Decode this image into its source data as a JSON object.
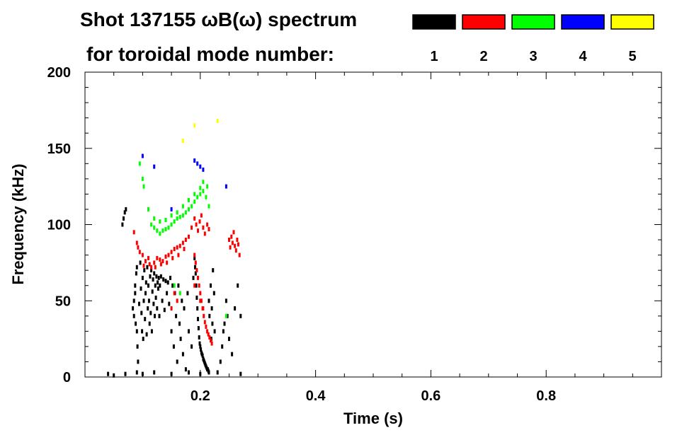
{
  "title_line1": "Shot 137155 ωB(ω) spectrum",
  "title_line2": "for toroidal mode number:",
  "chart_data": {
    "type": "scatter",
    "title": "Shot 137155 ωB(ω) spectrum for toroidal mode number:",
    "xlabel": "Time (s)",
    "ylabel": "Frequency (kHz)",
    "xlim": [
      0.0,
      1.0
    ],
    "ylim": [
      0,
      200
    ],
    "xticks": [
      0.2,
      0.4,
      0.6,
      0.8
    ],
    "xtick_labels": [
      "0.2",
      "0.4",
      "0.6",
      "0.8"
    ],
    "yticks": [
      0,
      50,
      100,
      150,
      200
    ],
    "ytick_labels": [
      "0",
      "50",
      "100",
      "150",
      "200"
    ],
    "grid": false,
    "legend_position": "top-right",
    "legend": [
      {
        "label": "1",
        "color": "#000000"
      },
      {
        "label": "2",
        "color": "#ff0000"
      },
      {
        "label": "3",
        "color": "#00ff00"
      },
      {
        "label": "4",
        "color": "#0000ff"
      },
      {
        "label": "5",
        "color": "#ffff00"
      }
    ],
    "series": [
      {
        "name": "1",
        "color": "#000000",
        "points": [
          [
            0.04,
            2
          ],
          [
            0.05,
            1
          ],
          [
            0.07,
            2
          ],
          [
            0.09,
            3
          ],
          [
            0.1,
            2
          ],
          [
            0.12,
            3
          ],
          [
            0.15,
            2
          ],
          [
            0.18,
            3
          ],
          [
            0.2,
            2
          ],
          [
            0.23,
            3
          ],
          [
            0.27,
            2
          ],
          [
            0.065,
            100
          ],
          [
            0.067,
            104
          ],
          [
            0.069,
            108
          ],
          [
            0.071,
            110
          ],
          [
            0.083,
            45
          ],
          [
            0.085,
            50
          ],
          [
            0.085,
            40
          ],
          [
            0.087,
            55
          ],
          [
            0.087,
            60
          ],
          [
            0.088,
            35
          ],
          [
            0.089,
            68
          ],
          [
            0.09,
            72
          ],
          [
            0.09,
            30
          ],
          [
            0.091,
            20
          ],
          [
            0.092,
            10
          ],
          [
            0.094,
            48
          ],
          [
            0.096,
            75
          ],
          [
            0.097,
            58
          ],
          [
            0.098,
            42
          ],
          [
            0.099,
            30
          ],
          [
            0.1,
            65
          ],
          [
            0.101,
            25
          ],
          [
            0.102,
            50
          ],
          [
            0.103,
            70
          ],
          [
            0.104,
            38
          ],
          [
            0.105,
            55
          ],
          [
            0.106,
            62
          ],
          [
            0.107,
            28
          ],
          [
            0.108,
            72
          ],
          [
            0.109,
            45
          ],
          [
            0.11,
            60
          ],
          [
            0.111,
            50
          ],
          [
            0.112,
            35
          ],
          [
            0.113,
            66
          ],
          [
            0.114,
            42
          ],
          [
            0.115,
            70
          ],
          [
            0.116,
            30
          ],
          [
            0.117,
            56
          ],
          [
            0.118,
            64
          ],
          [
            0.119,
            48
          ],
          [
            0.12,
            68
          ],
          [
            0.121,
            40
          ],
          [
            0.122,
            60
          ],
          [
            0.123,
            52
          ],
          [
            0.124,
            66
          ],
          [
            0.125,
            45
          ],
          [
            0.126,
            62
          ],
          [
            0.127,
            58
          ],
          [
            0.128,
            65
          ],
          [
            0.129,
            40
          ],
          [
            0.13,
            60
          ],
          [
            0.132,
            66
          ],
          [
            0.134,
            50
          ],
          [
            0.136,
            64
          ],
          [
            0.138,
            44
          ],
          [
            0.14,
            63
          ],
          [
            0.142,
            55
          ],
          [
            0.144,
            62
          ],
          [
            0.146,
            48
          ],
          [
            0.148,
            65
          ],
          [
            0.15,
            30
          ],
          [
            0.152,
            60
          ],
          [
            0.154,
            20
          ],
          [
            0.156,
            55
          ],
          [
            0.158,
            40
          ],
          [
            0.16,
            10
          ],
          [
            0.162,
            60
          ],
          [
            0.164,
            35
          ],
          [
            0.166,
            25
          ],
          [
            0.168,
            50
          ],
          [
            0.17,
            15
          ],
          [
            0.172,
            45
          ],
          [
            0.175,
            5
          ],
          [
            0.178,
            55
          ],
          [
            0.18,
            30
          ],
          [
            0.185,
            20
          ],
          [
            0.188,
            65
          ],
          [
            0.19,
            78
          ],
          [
            0.191,
            72
          ],
          [
            0.192,
            68
          ],
          [
            0.193,
            60
          ],
          [
            0.194,
            52
          ],
          [
            0.195,
            45
          ],
          [
            0.196,
            38
          ],
          [
            0.197,
            32
          ],
          [
            0.198,
            26
          ],
          [
            0.199,
            22
          ],
          [
            0.2,
            20
          ],
          [
            0.201,
            18
          ],
          [
            0.202,
            16
          ],
          [
            0.203,
            15
          ],
          [
            0.204,
            14
          ],
          [
            0.205,
            12
          ],
          [
            0.206,
            11
          ],
          [
            0.207,
            10
          ],
          [
            0.208,
            9
          ],
          [
            0.209,
            8
          ],
          [
            0.21,
            7
          ],
          [
            0.211,
            6
          ],
          [
            0.212,
            5
          ],
          [
            0.213,
            5
          ],
          [
            0.214,
            4
          ],
          [
            0.215,
            3
          ],
          [
            0.215,
            50
          ],
          [
            0.216,
            40
          ],
          [
            0.218,
            60
          ],
          [
            0.219,
            25
          ],
          [
            0.22,
            45
          ],
          [
            0.221,
            35
          ],
          [
            0.222,
            70
          ],
          [
            0.224,
            55
          ],
          [
            0.225,
            30
          ],
          [
            0.235,
            10
          ],
          [
            0.238,
            20
          ],
          [
            0.24,
            30
          ],
          [
            0.242,
            35
          ],
          [
            0.245,
            50
          ],
          [
            0.247,
            40
          ],
          [
            0.25,
            25
          ],
          [
            0.255,
            15
          ],
          [
            0.26,
            45
          ],
          [
            0.265,
            60
          ],
          [
            0.27,
            40
          ]
        ]
      },
      {
        "name": "2",
        "color": "#ff0000",
        "points": [
          [
            0.085,
            95
          ],
          [
            0.09,
            88
          ],
          [
            0.095,
            82
          ],
          [
            0.1,
            80
          ],
          [
            0.105,
            76
          ],
          [
            0.11,
            78
          ],
          [
            0.115,
            72
          ],
          [
            0.12,
            75
          ],
          [
            0.125,
            78
          ],
          [
            0.13,
            77
          ],
          [
            0.135,
            76
          ],
          [
            0.14,
            79
          ],
          [
            0.145,
            80
          ],
          [
            0.15,
            82
          ],
          [
            0.155,
            84
          ],
          [
            0.16,
            85
          ],
          [
            0.165,
            86
          ],
          [
            0.17,
            88
          ],
          [
            0.175,
            90
          ],
          [
            0.18,
            92
          ],
          [
            0.092,
            85
          ],
          [
            0.102,
            73
          ],
          [
            0.112,
            74
          ],
          [
            0.122,
            72
          ],
          [
            0.132,
            74
          ],
          [
            0.142,
            75
          ],
          [
            0.152,
            78
          ],
          [
            0.162,
            80
          ],
          [
            0.172,
            84
          ],
          [
            0.185,
            98
          ],
          [
            0.19,
            104
          ],
          [
            0.193,
            100
          ],
          [
            0.196,
            96
          ],
          [
            0.199,
            102
          ],
          [
            0.202,
            106
          ],
          [
            0.205,
            98
          ],
          [
            0.208,
            94
          ],
          [
            0.212,
            100
          ],
          [
            0.215,
            97
          ],
          [
            0.19,
            80
          ],
          [
            0.192,
            75
          ],
          [
            0.194,
            70
          ],
          [
            0.196,
            65
          ],
          [
            0.198,
            60
          ],
          [
            0.2,
            55
          ],
          [
            0.202,
            50
          ],
          [
            0.204,
            45
          ],
          [
            0.206,
            40
          ],
          [
            0.208,
            36
          ],
          [
            0.21,
            33
          ],
          [
            0.212,
            30
          ],
          [
            0.214,
            28
          ],
          [
            0.216,
            26
          ],
          [
            0.218,
            24
          ],
          [
            0.22,
            22
          ],
          [
            0.19,
            60
          ],
          [
            0.2,
            50
          ],
          [
            0.205,
            45
          ],
          [
            0.16,
            50
          ],
          [
            0.155,
            55
          ],
          [
            0.15,
            45
          ],
          [
            0.25,
            90
          ],
          [
            0.252,
            85
          ],
          [
            0.254,
            92
          ],
          [
            0.256,
            88
          ],
          [
            0.258,
            95
          ],
          [
            0.26,
            86
          ],
          [
            0.262,
            83
          ],
          [
            0.264,
            90
          ],
          [
            0.266,
            87
          ],
          [
            0.268,
            80
          ]
        ]
      },
      {
        "name": "3",
        "color": "#00ff00",
        "points": [
          [
            0.095,
            140
          ],
          [
            0.1,
            130
          ],
          [
            0.102,
            125
          ],
          [
            0.11,
            110
          ],
          [
            0.115,
            100
          ],
          [
            0.12,
            98
          ],
          [
            0.125,
            96
          ],
          [
            0.13,
            94
          ],
          [
            0.135,
            96
          ],
          [
            0.14,
            97
          ],
          [
            0.145,
            98
          ],
          [
            0.15,
            100
          ],
          [
            0.155,
            102
          ],
          [
            0.16,
            104
          ],
          [
            0.165,
            105
          ],
          [
            0.17,
            106
          ],
          [
            0.175,
            108
          ],
          [
            0.18,
            110
          ],
          [
            0.185,
            112
          ],
          [
            0.19,
            115
          ],
          [
            0.195,
            118
          ],
          [
            0.2,
            120
          ],
          [
            0.205,
            122
          ],
          [
            0.21,
            118
          ],
          [
            0.215,
            112
          ],
          [
            0.12,
            104
          ],
          [
            0.13,
            102
          ],
          [
            0.14,
            103
          ],
          [
            0.15,
            106
          ],
          [
            0.16,
            108
          ],
          [
            0.17,
            112
          ],
          [
            0.18,
            116
          ],
          [
            0.19,
            120
          ],
          [
            0.2,
            124
          ],
          [
            0.205,
            128
          ],
          [
            0.212,
            125
          ],
          [
            0.155,
            60
          ],
          [
            0.165,
            55
          ],
          [
            0.245,
            40
          ]
        ]
      },
      {
        "name": "4",
        "color": "#0000ff",
        "points": [
          [
            0.1,
            145
          ],
          [
            0.12,
            138
          ],
          [
            0.15,
            110
          ],
          [
            0.19,
            142
          ],
          [
            0.195,
            140
          ],
          [
            0.2,
            138
          ],
          [
            0.205,
            136
          ],
          [
            0.245,
            125
          ]
        ]
      },
      {
        "name": "5",
        "color": "#ffff00",
        "points": [
          [
            0.17,
            155
          ],
          [
            0.19,
            165
          ],
          [
            0.23,
            168
          ]
        ]
      }
    ]
  }
}
